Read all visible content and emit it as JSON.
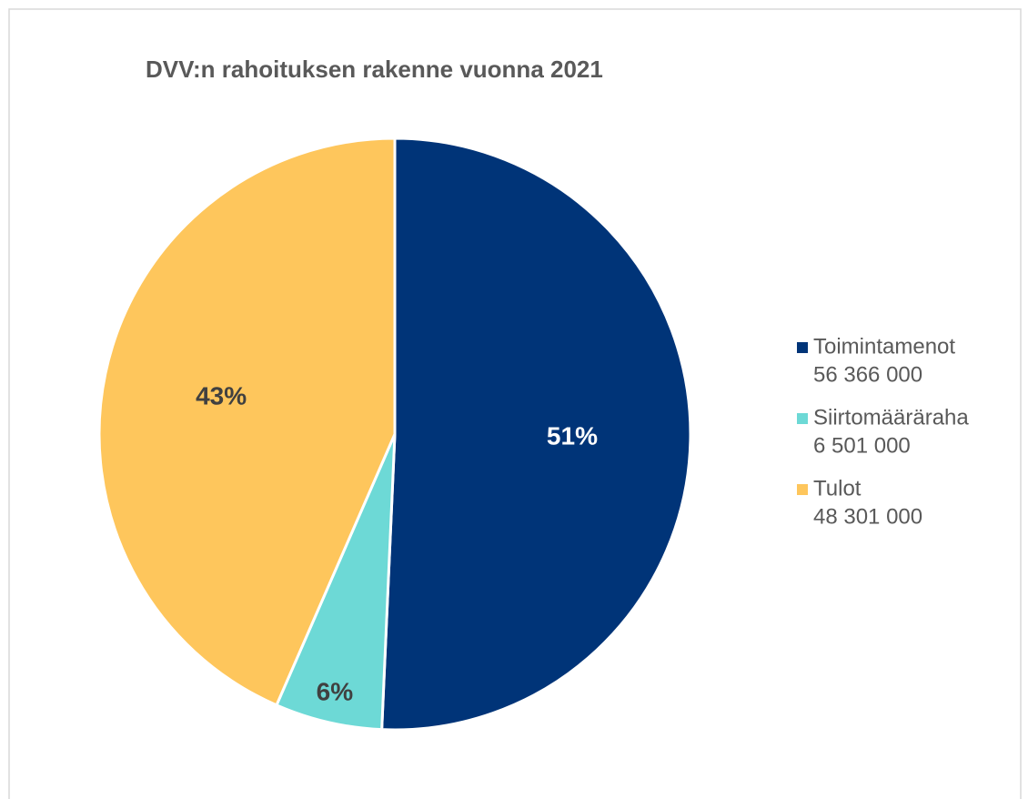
{
  "chart_data": {
    "type": "pie",
    "title": "DVV:n rahoituksen rakenne vuonna 2021",
    "categories": [
      "Toimintamenot",
      "Siirtomääräraha",
      "Tulot"
    ],
    "values": [
      56366000,
      6501000,
      48301000
    ],
    "value_labels": [
      "56 366 000",
      "6 501 000",
      "48 301 000"
    ],
    "percent_labels": [
      "51%",
      "6%",
      "43%"
    ],
    "colors": [
      "#003478",
      "#6dd9d6",
      "#fec65c"
    ],
    "legend": "right"
  }
}
